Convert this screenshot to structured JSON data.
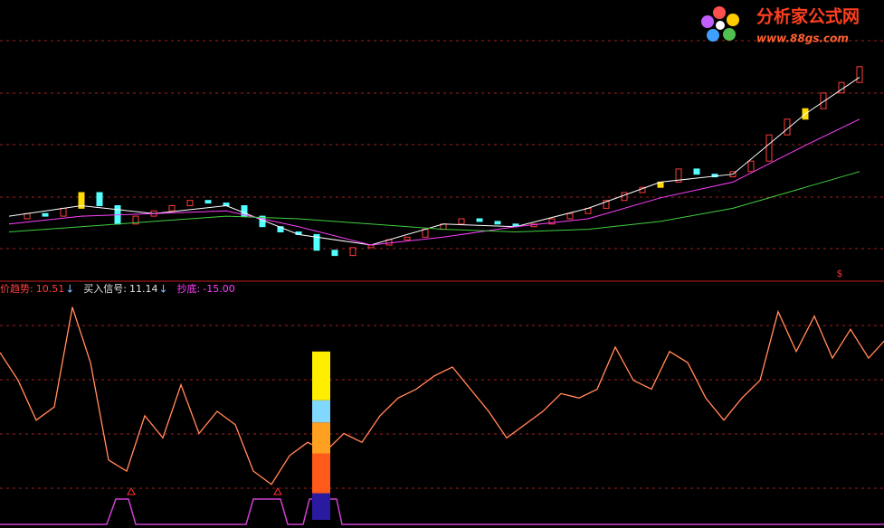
{
  "logo": {
    "title": "分析家公式网",
    "url": "www.88gs.com"
  },
  "chart_data": [
    {
      "type": "candlestick",
      "ylim": [
        0,
        100
      ],
      "close": [
        20,
        22,
        21,
        24,
        30,
        25,
        18,
        21,
        23,
        25,
        27,
        26,
        25,
        21,
        17,
        15,
        14,
        8,
        6,
        9,
        10,
        12,
        13,
        16,
        18,
        20,
        19,
        18,
        17,
        18,
        20,
        22,
        24,
        27,
        30,
        32,
        34,
        39,
        37,
        36,
        38,
        42,
        52,
        58,
        62,
        68,
        72,
        78
      ],
      "highlight": [
        4,
        36,
        44
      ],
      "up_color": "#ff3c3c",
      "down_color": "#54ffff",
      "highlight_color": "#ffdd00",
      "marker": {
        "text": "$",
        "index": 46
      },
      "ma_x": [
        0,
        4,
        8,
        12,
        16,
        20,
        24,
        28,
        32,
        36,
        40,
        44,
        47
      ],
      "series": [
        {
          "color": "#ffffff",
          "values": [
            21,
            25,
            22,
            25,
            14,
            10,
            18,
            17,
            24,
            34,
            37,
            60,
            74
          ]
        },
        {
          "color": "#ff40ff",
          "values": [
            18,
            21,
            22,
            23,
            17,
            10,
            13,
            17,
            20,
            28,
            34,
            48,
            58
          ]
        },
        {
          "color": "#40d040",
          "values": [
            15,
            17,
            19,
            21,
            20,
            18,
            16,
            15,
            16,
            19,
            24,
            32,
            38
          ]
        }
      ]
    },
    {
      "type": "oscillator",
      "ylim": [
        0,
        100
      ],
      "legend": [
        {
          "name": "价趋势:",
          "value": "10.51",
          "arrow": "↓",
          "color": "#ff4040"
        },
        {
          "name": "买入信号:",
          "value": "11.14",
          "arrow": "↓",
          "color": "#e0e0e0"
        },
        {
          "name": "抄底:",
          "value": "-15.00",
          "arrow": "",
          "color": "#ff40ff"
        }
      ],
      "line_color": "#ff5a3c",
      "values": [
        75.5,
        63,
        45,
        51,
        96,
        71,
        27,
        22,
        47,
        37,
        61,
        39,
        49,
        43,
        22,
        16,
        29,
        35,
        31,
        39,
        35,
        47,
        55,
        59,
        65,
        69,
        59,
        49,
        37,
        43,
        49,
        57,
        55,
        59,
        78,
        63,
        59,
        76,
        71,
        55,
        45,
        55,
        63,
        94,
        76,
        92,
        73,
        86,
        73,
        82
      ],
      "signal_color": "#d040d0",
      "signal_x": [
        0,
        118,
        128,
        142,
        150,
        272,
        280,
        310,
        318,
        335,
        342,
        372,
        378,
        977
      ],
      "signal": [
        0,
        0,
        1,
        1,
        0,
        0,
        1,
        1,
        0,
        0,
        1,
        1,
        0,
        0
      ],
      "alerts": [
        145,
        307
      ],
      "stack_x": 355,
      "stack": [
        {
          "color": "#2a1aa0",
          "value": 12
        },
        {
          "color": "#ff5a1a",
          "value": 18
        },
        {
          "color": "#ffa020",
          "value": 14
        },
        {
          "color": "#80d8ff",
          "value": 10
        },
        {
          "color": "#ffee00",
          "value": 22
        }
      ]
    }
  ]
}
